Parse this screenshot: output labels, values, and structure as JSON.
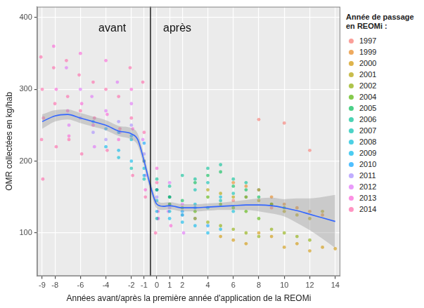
{
  "chart_data": {
    "type": "scatter",
    "x_label": "Années avant/après la première année d'application de la REOMi",
    "y_label": "OMR collectées en kg/hab",
    "legend_title": "Année de passage en REOMi :",
    "legend": "right",
    "grid": true,
    "xlim": [
      -9.4,
      14.4
    ],
    "xticks": [
      -9,
      -8,
      -6,
      -4,
      -2,
      -1,
      0,
      1,
      2,
      4,
      6,
      8,
      10,
      12,
      14
    ],
    "ylim": [
      40,
      415
    ],
    "yticks": [
      100,
      200,
      300,
      400
    ],
    "vline": -0.5,
    "annotations": [
      {
        "text": "avant",
        "x": -3.5,
        "y": 385
      },
      {
        "text": "après",
        "x": 1.6,
        "y": 385
      }
    ],
    "series": [
      {
        "name": "1997",
        "color": "#F8766D",
        "x": [
          6,
          8,
          9,
          10,
          12
        ],
        "values": [
          145,
          258,
          135,
          253,
          215
        ]
      },
      {
        "name": "1999",
        "color": "#E7861B",
        "x": [
          6,
          7,
          8,
          9,
          10,
          11,
          12,
          13
        ],
        "values": [
          170,
          165,
          160,
          150,
          140,
          135,
          130,
          125
        ]
      },
      {
        "name": "2000",
        "color": "#D09400",
        "x": [
          5,
          6,
          7,
          8,
          9,
          10,
          11,
          12,
          13,
          14
        ],
        "values": [
          95,
          90,
          85,
          100,
          95,
          80,
          85,
          75,
          80,
          78
        ]
      },
      {
        "name": "2001",
        "color": "#B2A100",
        "x": [
          4,
          5,
          6,
          7,
          8,
          9,
          10,
          11,
          12,
          13
        ],
        "values": [
          160,
          155,
          150,
          150,
          145,
          140,
          130,
          125,
          120,
          130
        ]
      },
      {
        "name": "2002",
        "color": "#8BAB00",
        "x": [
          3,
          4,
          5,
          6,
          7,
          8,
          9,
          10,
          11,
          12
        ],
        "values": [
          120,
          115,
          110,
          105,
          100,
          95,
          105,
          100,
          95,
          90
        ]
      },
      {
        "name": "2004",
        "color": "#53B400",
        "x": [
          1,
          2,
          3,
          4,
          5,
          6,
          7,
          8,
          9,
          10
        ],
        "values": [
          140,
          135,
          130,
          150,
          140,
          135,
          130,
          120,
          140,
          135
        ]
      },
      {
        "name": "2005",
        "color": "#00BC56",
        "x": [
          0,
          1,
          2,
          3,
          4,
          5,
          6,
          7,
          8,
          9
        ],
        "values": [
          160,
          150,
          145,
          170,
          180,
          185,
          165,
          160,
          150,
          140
        ]
      },
      {
        "name": "2006",
        "color": "#00C094",
        "x": [
          -1,
          0,
          1,
          2,
          3,
          4,
          5,
          6,
          7,
          8
        ],
        "values": [
          200,
          175,
          165,
          180,
          175,
          190,
          195,
          175,
          170,
          160
        ]
      },
      {
        "name": "2007",
        "color": "#00C0AF",
        "x": [
          -2,
          -1,
          0,
          1,
          3,
          4,
          5,
          6,
          7
        ],
        "values": [
          190,
          175,
          120,
          150,
          160,
          170,
          145,
          155,
          150
        ]
      },
      {
        "name": "2008",
        "color": "#00BCD8",
        "x": [
          -3,
          -2,
          -1,
          0,
          1,
          2,
          3,
          4,
          5,
          6
        ],
        "values": [
          205,
          230,
          190,
          145,
          130,
          125,
          140,
          135,
          150,
          130
        ]
      },
      {
        "name": "2009",
        "color": "#00B6EB",
        "x": [
          -4,
          -3,
          -2,
          -1,
          0,
          1,
          2,
          3,
          4,
          5
        ],
        "values": [
          220,
          215,
          200,
          180,
          130,
          120,
          115,
          110,
          100,
          105
        ]
      },
      {
        "name": "2010",
        "color": "#06A4FF",
        "x": [
          -5,
          -4,
          -3,
          -2,
          -1,
          0,
          1,
          2,
          3,
          4
        ],
        "values": [
          255,
          245,
          240,
          235,
          225,
          160,
          140,
          130,
          135,
          110
        ]
      },
      {
        "name": "2011",
        "color": "#A58AFF",
        "x": [
          -6,
          -5,
          -4,
          -3,
          -2,
          -1,
          0,
          1,
          2,
          3
        ],
        "values": [
          260,
          240,
          230,
          255,
          250,
          210,
          150,
          135,
          125,
          120
        ]
      },
      {
        "name": "2012",
        "color": "#DF70F8",
        "x": [
          -7.1,
          -6.9,
          -6,
          -5.1,
          -4.9,
          -4,
          -3.1,
          -2.9,
          -2,
          -1.1,
          -0.9,
          0,
          0.1,
          1,
          0.9,
          2,
          2.1
        ],
        "values": [
          330,
          250,
          300,
          290,
          220,
          270,
          310,
          240,
          280,
          230,
          180,
          160,
          120,
          170,
          130,
          140,
          100
        ]
      },
      {
        "name": "2013",
        "color": "#FB61D7",
        "x": [
          -8.1,
          -7.9,
          -7,
          -6.9,
          -6,
          -5.9,
          -5,
          -4,
          -3.9,
          -3,
          -2,
          -1.9,
          -1,
          -0.9,
          0,
          0.1,
          1,
          1.1
        ],
        "values": [
          360,
          300,
          270,
          235,
          350,
          280,
          250,
          340,
          265,
          230,
          300,
          245,
          200,
          160,
          190,
          130,
          150,
          110
        ]
      },
      {
        "name": "2014",
        "color": "#FF66A8",
        "x": [
          -9.1,
          -9,
          -8.9,
          -9.05,
          -8.95,
          -8.1,
          -8,
          -7.9,
          -7.1,
          -7,
          -6.9,
          -6.1,
          -6,
          -5.9,
          -5,
          -4.9,
          -4,
          -3.9,
          -3,
          -2.9,
          -2.1,
          -2,
          -1.9,
          -1.1,
          -1,
          -0.9,
          0,
          0.1,
          -0.1
        ],
        "values": [
          345,
          300,
          260,
          230,
          175,
          330,
          280,
          220,
          340,
          290,
          230,
          320,
          270,
          210,
          310,
          260,
          300,
          215,
          290,
          245,
          330,
          260,
          180,
          310,
          240,
          150,
          170,
          120,
          100
        ]
      }
    ],
    "fit": {
      "color": "#3366FF",
      "x": [
        -9,
        -8,
        -7,
        -6,
        -5,
        -4,
        -3,
        -2,
        -1.5,
        -1,
        -0.5,
        0,
        0.5,
        1,
        2,
        3,
        4,
        5,
        6,
        7,
        8,
        9,
        10,
        11,
        12,
        13,
        14
      ],
      "values": [
        255,
        263,
        265,
        260,
        255,
        250,
        242,
        238,
        230,
        200,
        165,
        140,
        137,
        138,
        135,
        135,
        136,
        137,
        138,
        139,
        139,
        138,
        135,
        131,
        126,
        121,
        116
      ],
      "lower": [
        245,
        255,
        258,
        253,
        248,
        243,
        235,
        230,
        222,
        192,
        158,
        134,
        132,
        133,
        130,
        130,
        131,
        132,
        132,
        132,
        130,
        127,
        123,
        114,
        104,
        92,
        79
      ],
      "upper": [
        265,
        271,
        272,
        267,
        262,
        257,
        249,
        246,
        238,
        208,
        172,
        146,
        142,
        143,
        140,
        140,
        141,
        142,
        144,
        146,
        148,
        149,
        147,
        148,
        148,
        150,
        153
      ]
    }
  }
}
